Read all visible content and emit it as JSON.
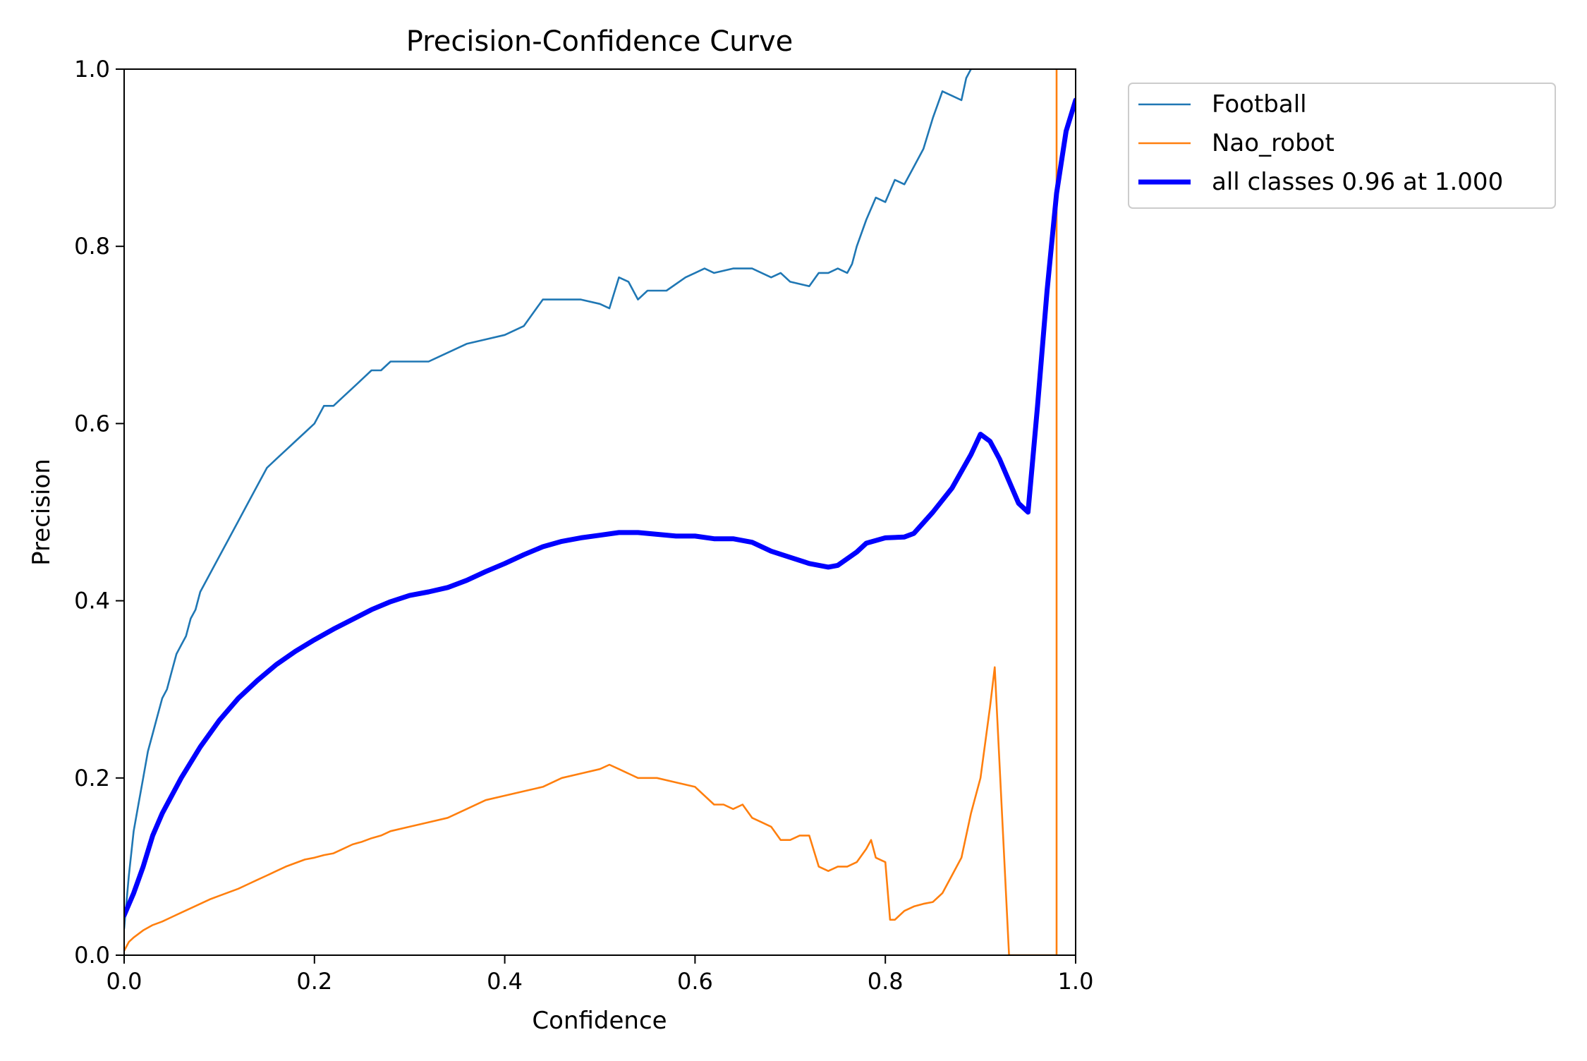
{
  "chart_data": {
    "type": "line",
    "title": "Precision-Confidence Curve",
    "xlabel": "Confidence",
    "ylabel": "Precision",
    "xlim": [
      0,
      1
    ],
    "ylim": [
      0,
      1
    ],
    "xticks": [
      "0.0",
      "0.2",
      "0.4",
      "0.6",
      "0.8",
      "1.0"
    ],
    "yticks": [
      "0.0",
      "0.2",
      "0.4",
      "0.6",
      "0.8",
      "1.0"
    ],
    "grid": false,
    "legend_position": "outside-top-right",
    "series": [
      {
        "name": "Football",
        "color": "#1f77b4",
        "width": "thin",
        "points": [
          [
            0.0,
            0.03
          ],
          [
            0.005,
            0.09
          ],
          [
            0.01,
            0.14
          ],
          [
            0.015,
            0.17
          ],
          [
            0.02,
            0.2
          ],
          [
            0.025,
            0.23
          ],
          [
            0.03,
            0.25
          ],
          [
            0.035,
            0.27
          ],
          [
            0.04,
            0.29
          ],
          [
            0.045,
            0.3
          ],
          [
            0.05,
            0.32
          ],
          [
            0.055,
            0.34
          ],
          [
            0.06,
            0.35
          ],
          [
            0.065,
            0.36
          ],
          [
            0.07,
            0.38
          ],
          [
            0.075,
            0.39
          ],
          [
            0.08,
            0.41
          ],
          [
            0.09,
            0.43
          ],
          [
            0.1,
            0.45
          ],
          [
            0.11,
            0.47
          ],
          [
            0.12,
            0.49
          ],
          [
            0.13,
            0.51
          ],
          [
            0.14,
            0.53
          ],
          [
            0.15,
            0.55
          ],
          [
            0.16,
            0.56
          ],
          [
            0.17,
            0.57
          ],
          [
            0.18,
            0.58
          ],
          [
            0.19,
            0.59
          ],
          [
            0.2,
            0.6
          ],
          [
            0.21,
            0.62
          ],
          [
            0.22,
            0.62
          ],
          [
            0.23,
            0.63
          ],
          [
            0.24,
            0.64
          ],
          [
            0.25,
            0.65
          ],
          [
            0.26,
            0.66
          ],
          [
            0.27,
            0.66
          ],
          [
            0.28,
            0.67
          ],
          [
            0.3,
            0.67
          ],
          [
            0.32,
            0.67
          ],
          [
            0.34,
            0.68
          ],
          [
            0.36,
            0.69
          ],
          [
            0.38,
            0.695
          ],
          [
            0.4,
            0.7
          ],
          [
            0.42,
            0.71
          ],
          [
            0.44,
            0.74
          ],
          [
            0.46,
            0.74
          ],
          [
            0.48,
            0.74
          ],
          [
            0.5,
            0.735
          ],
          [
            0.51,
            0.73
          ],
          [
            0.52,
            0.765
          ],
          [
            0.53,
            0.76
          ],
          [
            0.54,
            0.74
          ],
          [
            0.55,
            0.75
          ],
          [
            0.57,
            0.75
          ],
          [
            0.59,
            0.765
          ],
          [
            0.6,
            0.77
          ],
          [
            0.61,
            0.775
          ],
          [
            0.62,
            0.77
          ],
          [
            0.64,
            0.775
          ],
          [
            0.66,
            0.775
          ],
          [
            0.68,
            0.765
          ],
          [
            0.69,
            0.77
          ],
          [
            0.7,
            0.76
          ],
          [
            0.72,
            0.755
          ],
          [
            0.73,
            0.77
          ],
          [
            0.74,
            0.77
          ],
          [
            0.75,
            0.775
          ],
          [
            0.76,
            0.77
          ],
          [
            0.765,
            0.78
          ],
          [
            0.77,
            0.8
          ],
          [
            0.78,
            0.83
          ],
          [
            0.79,
            0.855
          ],
          [
            0.8,
            0.85
          ],
          [
            0.81,
            0.875
          ],
          [
            0.82,
            0.87
          ],
          [
            0.83,
            0.89
          ],
          [
            0.84,
            0.91
          ],
          [
            0.85,
            0.945
          ],
          [
            0.86,
            0.975
          ],
          [
            0.87,
            0.97
          ],
          [
            0.88,
            0.965
          ],
          [
            0.885,
            0.99
          ],
          [
            0.89,
            1.0
          ]
        ]
      },
      {
        "name": "Nao_robot",
        "color": "#ff7f0e",
        "width": "thin",
        "points": [
          [
            0.0,
            0.005
          ],
          [
            0.005,
            0.015
          ],
          [
            0.01,
            0.02
          ],
          [
            0.02,
            0.028
          ],
          [
            0.03,
            0.034
          ],
          [
            0.04,
            0.038
          ],
          [
            0.05,
            0.043
          ],
          [
            0.06,
            0.048
          ],
          [
            0.07,
            0.053
          ],
          [
            0.08,
            0.058
          ],
          [
            0.09,
            0.063
          ],
          [
            0.1,
            0.067
          ],
          [
            0.11,
            0.071
          ],
          [
            0.12,
            0.075
          ],
          [
            0.13,
            0.08
          ],
          [
            0.14,
            0.085
          ],
          [
            0.15,
            0.09
          ],
          [
            0.16,
            0.095
          ],
          [
            0.17,
            0.1
          ],
          [
            0.18,
            0.104
          ],
          [
            0.19,
            0.108
          ],
          [
            0.2,
            0.11
          ],
          [
            0.21,
            0.113
          ],
          [
            0.22,
            0.115
          ],
          [
            0.23,
            0.12
          ],
          [
            0.24,
            0.125
          ],
          [
            0.25,
            0.128
          ],
          [
            0.26,
            0.132
          ],
          [
            0.27,
            0.135
          ],
          [
            0.28,
            0.14
          ],
          [
            0.3,
            0.145
          ],
          [
            0.32,
            0.15
          ],
          [
            0.34,
            0.155
          ],
          [
            0.36,
            0.165
          ],
          [
            0.38,
            0.175
          ],
          [
            0.4,
            0.18
          ],
          [
            0.42,
            0.185
          ],
          [
            0.44,
            0.19
          ],
          [
            0.46,
            0.2
          ],
          [
            0.48,
            0.205
          ],
          [
            0.5,
            0.21
          ],
          [
            0.51,
            0.215
          ],
          [
            0.52,
            0.21
          ],
          [
            0.53,
            0.205
          ],
          [
            0.54,
            0.2
          ],
          [
            0.56,
            0.2
          ],
          [
            0.58,
            0.195
          ],
          [
            0.6,
            0.19
          ],
          [
            0.62,
            0.17
          ],
          [
            0.63,
            0.17
          ],
          [
            0.64,
            0.165
          ],
          [
            0.65,
            0.17
          ],
          [
            0.66,
            0.155
          ],
          [
            0.67,
            0.15
          ],
          [
            0.68,
            0.145
          ],
          [
            0.69,
            0.13
          ],
          [
            0.7,
            0.13
          ],
          [
            0.71,
            0.135
          ],
          [
            0.72,
            0.135
          ],
          [
            0.73,
            0.1
          ],
          [
            0.74,
            0.095
          ],
          [
            0.75,
            0.1
          ],
          [
            0.76,
            0.1
          ],
          [
            0.77,
            0.105
          ],
          [
            0.78,
            0.12
          ],
          [
            0.785,
            0.13
          ],
          [
            0.79,
            0.11
          ],
          [
            0.8,
            0.105
          ],
          [
            0.805,
            0.04
          ],
          [
            0.81,
            0.04
          ],
          [
            0.82,
            0.05
          ],
          [
            0.83,
            0.055
          ],
          [
            0.84,
            0.058
          ],
          [
            0.85,
            0.06
          ],
          [
            0.86,
            0.07
          ],
          [
            0.87,
            0.09
          ],
          [
            0.88,
            0.11
          ],
          [
            0.89,
            0.16
          ],
          [
            0.9,
            0.2
          ],
          [
            0.91,
            0.28
          ],
          [
            0.915,
            0.325
          ],
          [
            0.93,
            0.0
          ],
          [
            0.98,
            0.0
          ],
          [
            0.98,
            1.0
          ]
        ]
      },
      {
        "name": "all classes 0.96 at 1.000",
        "color": "#0000ff",
        "width": "thick",
        "points": [
          [
            0.0,
            0.045
          ],
          [
            0.01,
            0.07
          ],
          [
            0.02,
            0.1
          ],
          [
            0.03,
            0.135
          ],
          [
            0.04,
            0.16
          ],
          [
            0.06,
            0.2
          ],
          [
            0.08,
            0.235
          ],
          [
            0.1,
            0.265
          ],
          [
            0.12,
            0.29
          ],
          [
            0.14,
            0.31
          ],
          [
            0.16,
            0.328
          ],
          [
            0.18,
            0.343
          ],
          [
            0.2,
            0.356
          ],
          [
            0.22,
            0.368
          ],
          [
            0.24,
            0.379
          ],
          [
            0.26,
            0.39
          ],
          [
            0.28,
            0.399
          ],
          [
            0.3,
            0.406
          ],
          [
            0.32,
            0.41
          ],
          [
            0.34,
            0.415
          ],
          [
            0.36,
            0.423
          ],
          [
            0.38,
            0.433
          ],
          [
            0.4,
            0.442
          ],
          [
            0.42,
            0.452
          ],
          [
            0.44,
            0.461
          ],
          [
            0.46,
            0.467
          ],
          [
            0.48,
            0.471
          ],
          [
            0.5,
            0.474
          ],
          [
            0.52,
            0.477
          ],
          [
            0.54,
            0.477
          ],
          [
            0.56,
            0.475
          ],
          [
            0.58,
            0.473
          ],
          [
            0.6,
            0.473
          ],
          [
            0.62,
            0.47
          ],
          [
            0.64,
            0.47
          ],
          [
            0.66,
            0.466
          ],
          [
            0.68,
            0.456
          ],
          [
            0.7,
            0.449
          ],
          [
            0.72,
            0.442
          ],
          [
            0.74,
            0.438
          ],
          [
            0.75,
            0.44
          ],
          [
            0.77,
            0.455
          ],
          [
            0.78,
            0.465
          ],
          [
            0.8,
            0.471
          ],
          [
            0.82,
            0.472
          ],
          [
            0.83,
            0.476
          ],
          [
            0.85,
            0.5
          ],
          [
            0.87,
            0.527
          ],
          [
            0.89,
            0.565
          ],
          [
            0.9,
            0.588
          ],
          [
            0.91,
            0.58
          ],
          [
            0.92,
            0.56
          ],
          [
            0.93,
            0.535
          ],
          [
            0.94,
            0.51
          ],
          [
            0.95,
            0.5
          ],
          [
            0.96,
            0.62
          ],
          [
            0.97,
            0.75
          ],
          [
            0.98,
            0.86
          ],
          [
            0.99,
            0.93
          ],
          [
            1.0,
            0.965
          ]
        ]
      }
    ]
  }
}
